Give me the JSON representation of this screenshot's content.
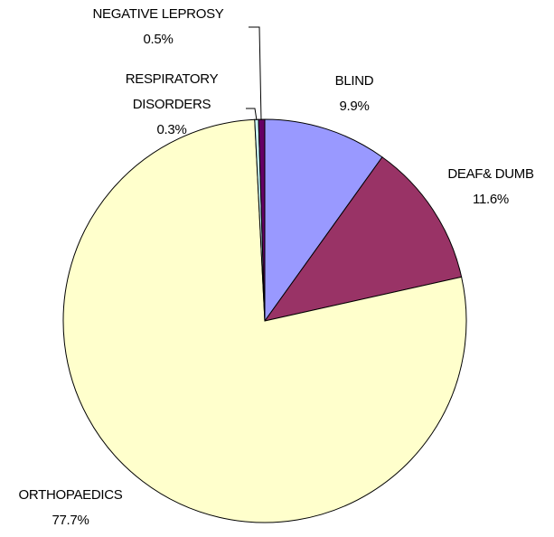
{
  "chart_data": {
    "type": "pie",
    "categories": [
      "BLIND",
      "DEAF& DUMB",
      "ORTHOPAEDICS",
      "RESPIRATORY DISORDERS",
      "NEGATIVE LEPROSY"
    ],
    "values": [
      9.9,
      11.6,
      77.7,
      0.3,
      0.5
    ],
    "value_labels": [
      "9.9%",
      "11.6%",
      "77.7%",
      "0.3%",
      "0.5%"
    ],
    "colors": [
      "#9999ff",
      "#993366",
      "#ffffcc",
      "#ccffff",
      "#660066"
    ]
  }
}
